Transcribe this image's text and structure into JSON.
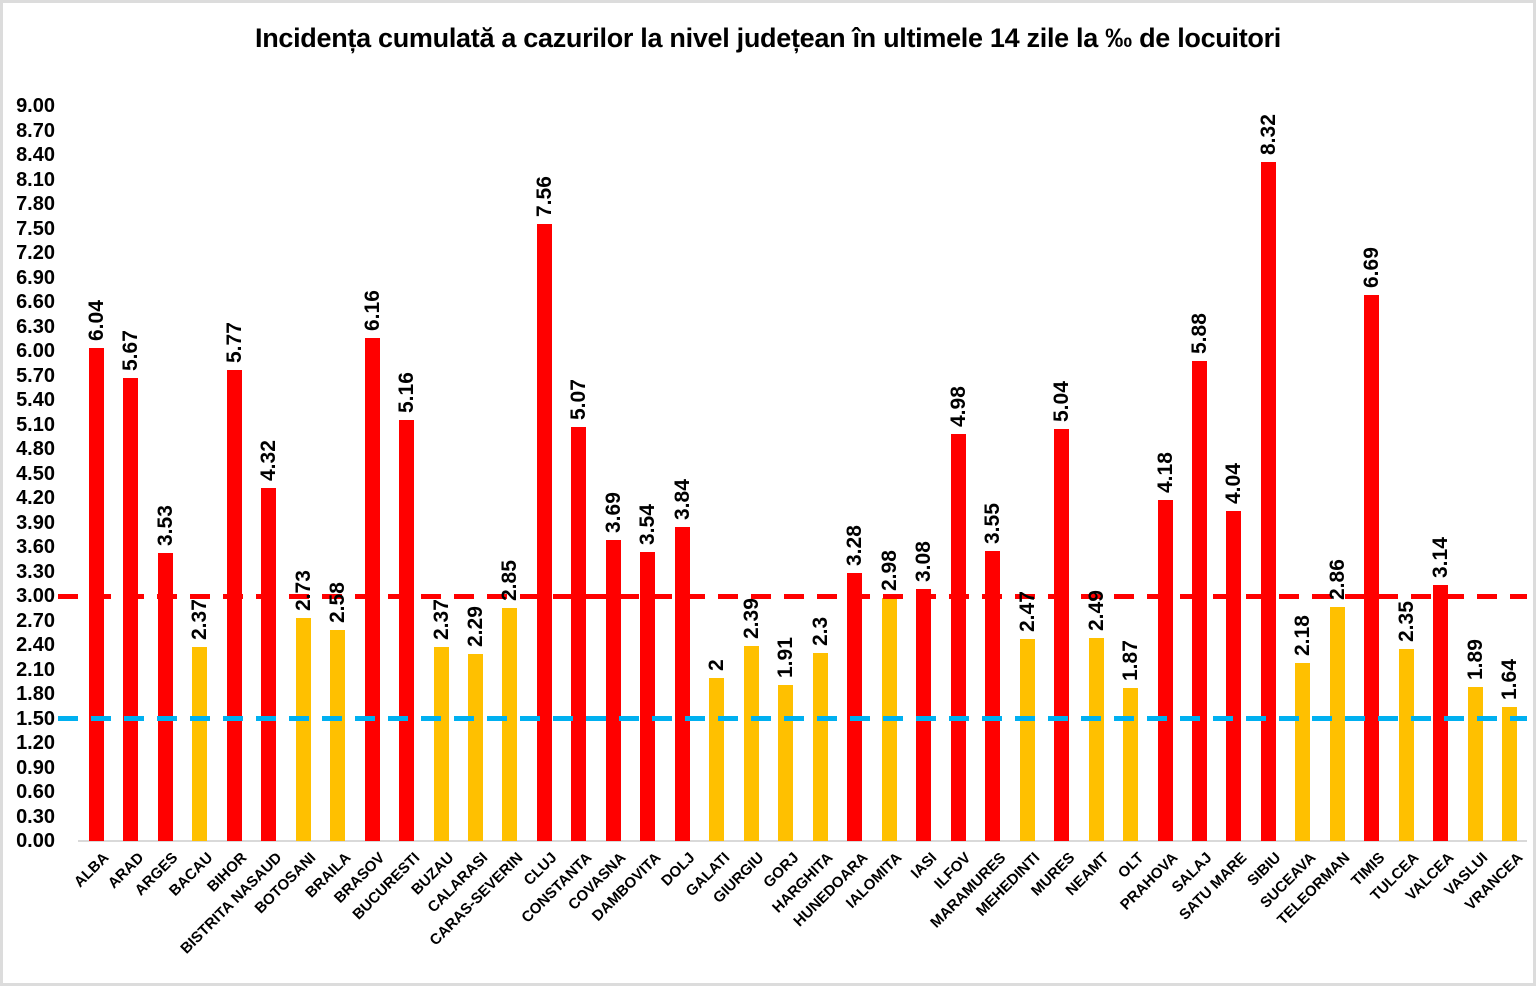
{
  "chart_data": {
    "type": "bar",
    "title": "Incidența cumulată a cazurilor la nivel județean în ultimele 14 zile la ‰ de locuitori",
    "categories": [
      "ALBA",
      "ARAD",
      "ARGES",
      "BACAU",
      "BIHOR",
      "BISTRITA NASAUD",
      "BOTOSANI",
      "BRAILA",
      "BRASOV",
      "BUCURESTI",
      "BUZAU",
      "CALARASI",
      "CARAS-SEVERIN",
      "CLUJ",
      "CONSTANTA",
      "COVASNA",
      "DAMBOVITA",
      "DOLJ",
      "GALATI",
      "GIURGIU",
      "GORJ",
      "HARGHITA",
      "HUNEDOARA",
      "IALOMITA",
      "IASI",
      "ILFOV",
      "MARAMURES",
      "MEHEDINTI",
      "MURES",
      "NEAMT",
      "OLT",
      "PRAHOVA",
      "SALAJ",
      "SATU MARE",
      "SIBIU",
      "SUCEAVA",
      "TELEORMAN",
      "TIMIS",
      "TULCEA",
      "VALCEA",
      "VASLUI",
      "VRANCEA"
    ],
    "values": [
      6.04,
      5.67,
      3.53,
      2.37,
      5.77,
      4.32,
      2.73,
      2.58,
      6.16,
      5.16,
      2.37,
      2.29,
      2.85,
      7.56,
      5.07,
      3.69,
      3.54,
      3.84,
      2,
      2.39,
      1.91,
      2.3,
      3.28,
      2.98,
      3.08,
      4.98,
      3.55,
      2.47,
      5.04,
      2.49,
      1.87,
      4.18,
      5.88,
      4.04,
      8.32,
      2.18,
      2.86,
      6.69,
      2.35,
      3.14,
      1.89,
      1.64
    ],
    "colors": {
      "bar_above_threshold": "#ff0000",
      "bar_below_threshold": "#ffc000",
      "color_threshold": 3.0,
      "red_reference_line": "#ff0000",
      "blue_reference_line": "#00b0f0",
      "axis_line": "#d9d9d9",
      "text": "#000000",
      "background": "#ffffff",
      "frame_border": "#dcdcdc"
    },
    "reference_lines": [
      {
        "name": "red-threshold-line",
        "value": 3.0,
        "color": "#ff0000",
        "style": "dashed"
      },
      {
        "name": "blue-threshold-line",
        "value": 1.5,
        "color": "#00b0f0",
        "style": "dashed"
      }
    ],
    "y_axis": {
      "min": 0,
      "max": 9,
      "step": 0.3,
      "tick_labels": [
        "0.00",
        "0.30",
        "0.60",
        "0.90",
        "1.20",
        "1.50",
        "1.80",
        "2.10",
        "2.40",
        "2.70",
        "3.00",
        "3.30",
        "3.60",
        "3.90",
        "4.20",
        "4.50",
        "4.80",
        "5.10",
        "5.40",
        "5.70",
        "6.00",
        "6.30",
        "6.60",
        "6.90",
        "7.20",
        "7.50",
        "7.80",
        "8.10",
        "8.40",
        "8.70",
        "9.00"
      ]
    },
    "xlabel": "",
    "ylabel": "",
    "grid": "off",
    "legend": "none",
    "value_label_rotation": -90,
    "category_label_rotation": -45
  }
}
